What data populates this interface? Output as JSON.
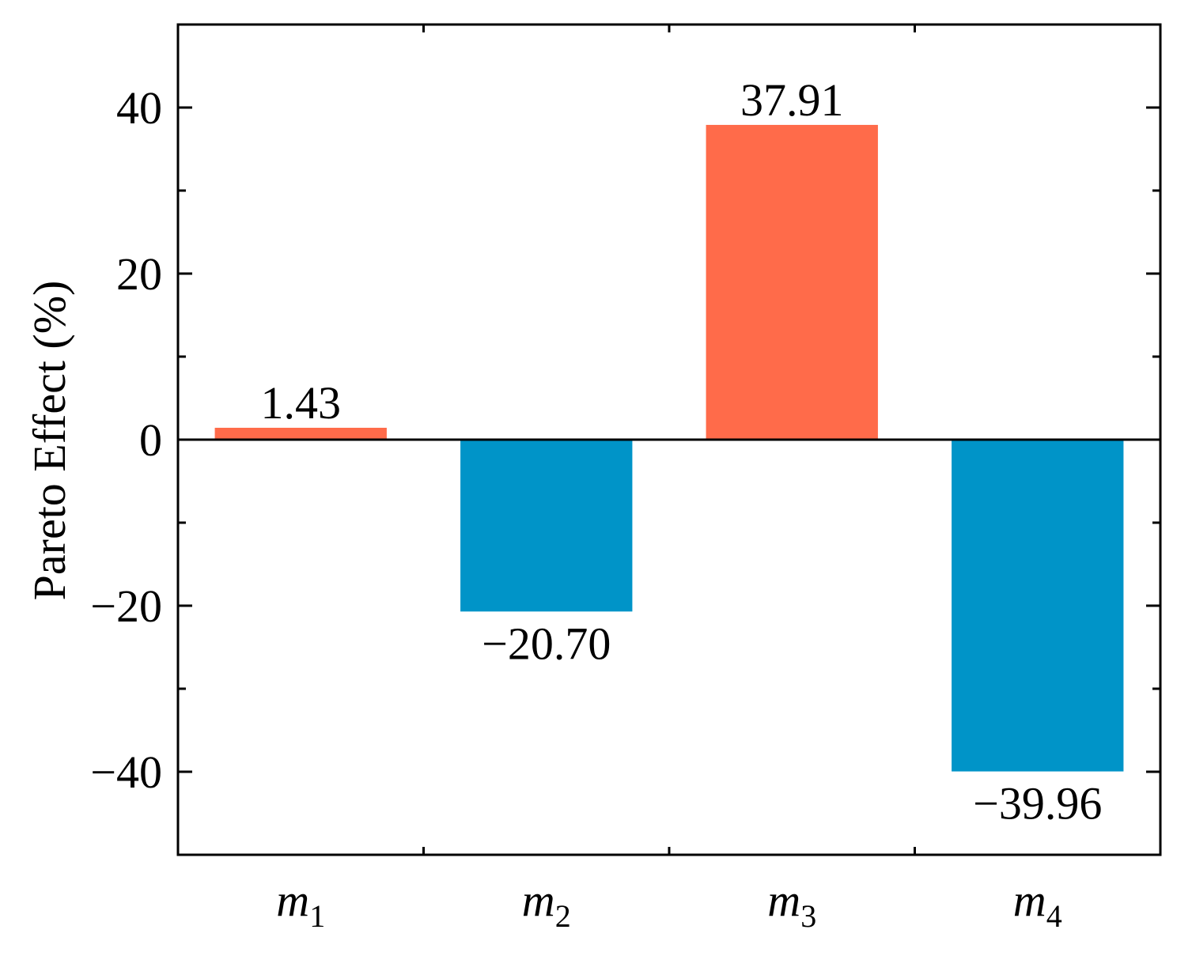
{
  "chart_data": {
    "type": "bar",
    "categories": [
      {
        "base": "m",
        "sub": "1"
      },
      {
        "base": "m",
        "sub": "2"
      },
      {
        "base": "m",
        "sub": "3"
      },
      {
        "base": "m",
        "sub": "4"
      }
    ],
    "values": [
      1.43,
      -20.7,
      37.91,
      -39.96
    ],
    "data_labels": [
      "1.43",
      "−20.70",
      "37.91",
      "−39.96"
    ],
    "title": "",
    "xlabel": "",
    "ylabel": "Pareto Effect (%)",
    "ylim": [
      -50,
      50
    ],
    "y_major_ticks": [
      -40,
      -20,
      0,
      20,
      40
    ],
    "y_tick_labels": [
      "−40",
      "−20",
      "0",
      "20",
      "40"
    ],
    "y_minor_ticks": [
      -30,
      -10,
      10,
      30
    ],
    "grid": false,
    "zero_line": true,
    "colors": {
      "positive": "#FF6B4A",
      "negative": "#0094C8",
      "axis": "#000000"
    }
  }
}
